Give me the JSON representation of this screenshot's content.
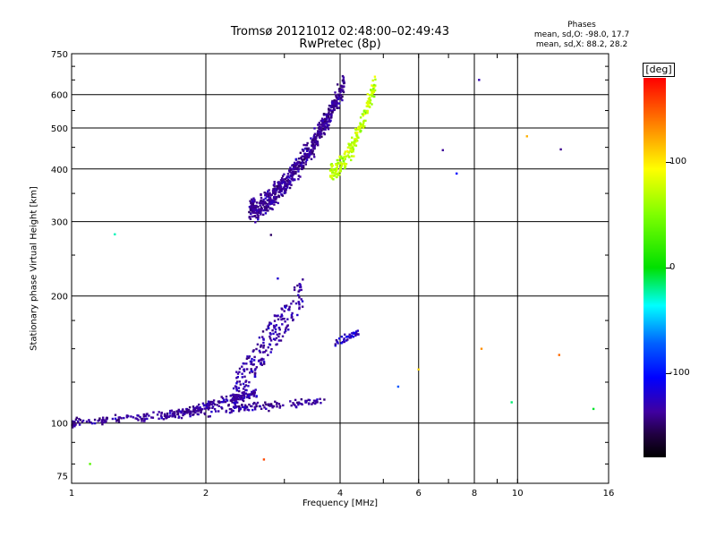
{
  "chart_data": {
    "type": "scatter",
    "title": "Tromsø 20121012 02:48:00–02:49:43",
    "subtitle": "RwPretec (8p)",
    "xlabel": "Frequency [MHz]",
    "ylabel": "Stationary phase Virtual Height [km]",
    "x_scale": "log",
    "y_scale": "log",
    "xlim": [
      1,
      16
    ],
    "ylim": [
      72,
      750
    ],
    "x_ticks": [
      1,
      2,
      4,
      6,
      8,
      10,
      16
    ],
    "y_ticks": [
      75,
      100,
      200,
      300,
      400,
      500,
      600,
      750
    ],
    "grid": true,
    "colorbar": {
      "label": "[deg]",
      "ticks": [
        100,
        0,
        -100
      ],
      "range": [
        -180,
        180
      ],
      "colors": [
        "#000000",
        "#200040",
        "#4000a0",
        "#0000ff",
        "#0060ff",
        "#00ffff",
        "#00e000",
        "#7fff00",
        "#ffff00",
        "#ff7f00",
        "#ff0000"
      ]
    },
    "phase_info": {
      "heading": "Phases",
      "o_line": "mean, sd,O: -98.0, 17.7",
      "x_line": "mean, sd,X:  88.2, 28.2"
    },
    "clusters": [
      {
        "name": "E-region low trace",
        "f_range": [
          1.0,
          3.7
        ],
        "h_start": 100,
        "h_end": 113,
        "phase": -110
      },
      {
        "name": "E-region rising trace",
        "f_range": [
          1.6,
          2.6
        ],
        "h_start": 103,
        "h_end": 118,
        "phase": -108
      },
      {
        "name": "Sporadic oblique trace",
        "f_range": [
          2.3,
          3.3
        ],
        "h_start": 110,
        "h_end": 190,
        "phase": -105
      },
      {
        "name": "F-region O trace",
        "f_range": [
          2.5,
          4.1
        ],
        "h_start": 320,
        "h_end": 640,
        "phase": -112
      },
      {
        "name": "F-region X trace",
        "f_range": [
          3.8,
          4.8
        ],
        "h_start": 390,
        "h_end": 640,
        "phase": 90
      },
      {
        "name": "Upper E patch",
        "f_range": [
          3.9,
          4.4
        ],
        "h_start": 155,
        "h_end": 165,
        "phase": -95
      }
    ],
    "scattered_points": [
      {
        "x": 1.25,
        "y": 280,
        "phase": 10
      },
      {
        "x": 1.1,
        "y": 80,
        "phase": 60
      },
      {
        "x": 2.7,
        "y": 82,
        "phase": 160
      },
      {
        "x": 2.9,
        "y": 220,
        "phase": -90
      },
      {
        "x": 2.8,
        "y": 279,
        "phase": -130
      },
      {
        "x": 5.4,
        "y": 122,
        "phase": -40
      },
      {
        "x": 6.0,
        "y": 134,
        "phase": 120
      },
      {
        "x": 6.8,
        "y": 443,
        "phase": -110
      },
      {
        "x": 7.3,
        "y": 390,
        "phase": -70
      },
      {
        "x": 8.2,
        "y": 650,
        "phase": -100
      },
      {
        "x": 8.3,
        "y": 150,
        "phase": 140
      },
      {
        "x": 9.7,
        "y": 112,
        "phase": 20
      },
      {
        "x": 10.5,
        "y": 478,
        "phase": 130
      },
      {
        "x": 12.4,
        "y": 145,
        "phase": 150
      },
      {
        "x": 12.5,
        "y": 445,
        "phase": -115
      },
      {
        "x": 14.8,
        "y": 108,
        "phase": 30
      }
    ]
  }
}
